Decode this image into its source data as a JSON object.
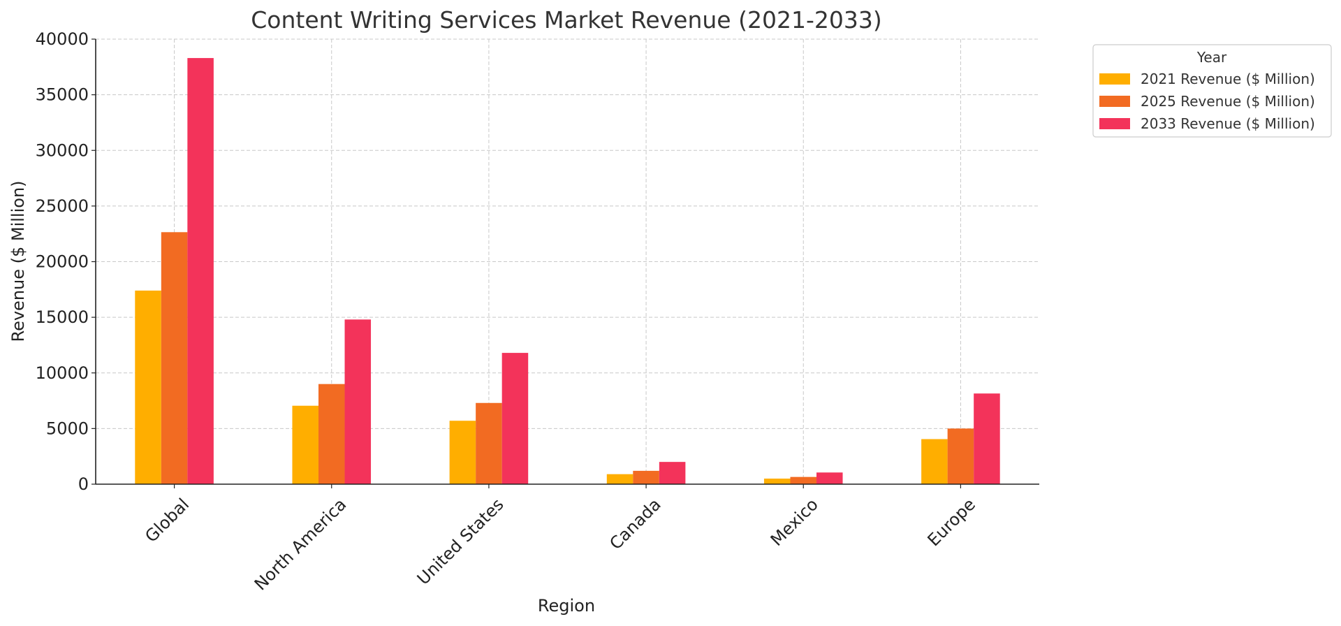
{
  "chart_data": {
    "type": "bar",
    "title": "Content Writing Services Market Revenue (2021-2033)",
    "xlabel": "Region",
    "ylabel": "Revenue ($ Million)",
    "categories": [
      "Global",
      "North America",
      "United States",
      "Canada",
      "Mexico",
      "Europe"
    ],
    "ylim": [
      0,
      40000
    ],
    "yticks": [
      "0",
      "5000",
      "10000",
      "15000",
      "20000",
      "25000",
      "30000",
      "35000",
      "40000"
    ],
    "grid": true,
    "legend": {
      "title": "Year",
      "placement": "outside-top-right"
    },
    "series": [
      {
        "name": "2021 Revenue ($ Million)",
        "color": "#FFAE00",
        "values": [
          17400,
          7050,
          5700,
          900,
          500,
          4050
        ]
      },
      {
        "name": "2025 Revenue ($ Million)",
        "color": "#F26B22",
        "values": [
          22650,
          9000,
          7300,
          1200,
          650,
          5000
        ]
      },
      {
        "name": "2033 Revenue ($ Million)",
        "color": "#F3335A",
        "values": [
          38300,
          14800,
          11800,
          2000,
          1050,
          8150
        ]
      }
    ]
  }
}
